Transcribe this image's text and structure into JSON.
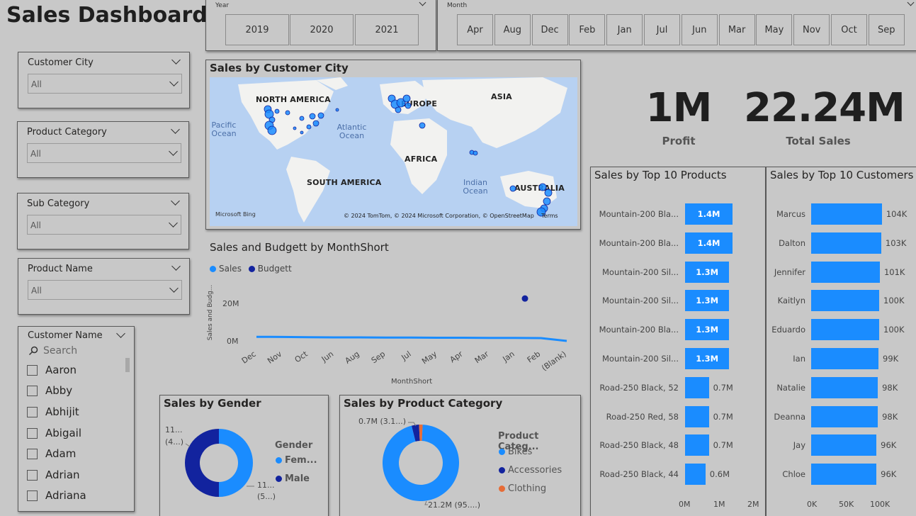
{
  "title": "Sales Dashboard",
  "year_slicer": {
    "label": "Year",
    "options": [
      "2019",
      "2020",
      "2021"
    ]
  },
  "month_slicer": {
    "label": "Month",
    "options": [
      "Apr",
      "Aug",
      "Dec",
      "Feb",
      "Jan",
      "Jul",
      "Jun",
      "Mar",
      "May",
      "Nov",
      "Oct",
      "Sep"
    ]
  },
  "filters": [
    {
      "label": "Customer City",
      "value": "All"
    },
    {
      "label": "Product Category",
      "value": "All"
    },
    {
      "label": "Sub Category",
      "value": "All"
    },
    {
      "label": "Product Name",
      "value": "All"
    }
  ],
  "customer_name": {
    "label": "Customer Name",
    "search_placeholder": "Search",
    "items": [
      "Aaron",
      "Abby",
      "Abhijit",
      "Abigail",
      "Adam",
      "Adrian",
      "Adriana"
    ]
  },
  "map": {
    "title": "Sales by Customer City",
    "continents": [
      "NORTH AMERICA",
      "EUROPE",
      "ASIA",
      "AFRICA",
      "SOUTH AMERICA",
      "AUSTRALIA"
    ],
    "oceans": [
      "Pacific Ocean",
      "Atlantic Ocean",
      "Indian Ocean"
    ],
    "bing": "Microsoft Bing",
    "copyright": "© 2024 TomTom, © 2024 Microsoft Corporation, © OpenStreetMap",
    "terms": "Terms"
  },
  "kpis": [
    {
      "value": "1M",
      "label": "Profit"
    },
    {
      "value": "22.24M",
      "label": "Total Sales"
    }
  ],
  "line_chart": {
    "title": "Sales and Budgett by MonthShort",
    "legend": [
      "Sales",
      "Budgett"
    ],
    "ylabel": "Sales and Budg...",
    "xlabel": "MonthShort",
    "yticks": [
      "20M",
      "0M"
    ],
    "colors": {
      "sales": "#1a8cff",
      "budget": "#12239e"
    }
  },
  "gender_chart": {
    "title": "Sales by Gender",
    "legend_title": "Gender",
    "legend": [
      "Fem...",
      "Male"
    ],
    "label_top": "11...",
    "label_top2": "(4...)",
    "label_bottom": "11...",
    "label_bottom2": "(5...)"
  },
  "category_chart": {
    "title": "Sales by Product Category",
    "legend_title": "Product Categ...",
    "legend": [
      "Bikes",
      "Accessories",
      "Clothing"
    ],
    "label_top": "0.7M (3.1...)",
    "label_bottom": "21.2M (95....)",
    "colors": {
      "bikes": "#1a8cff",
      "accessories": "#12239e",
      "clothing": "#e66c37"
    }
  },
  "top_products": {
    "title": "Sales by Top 10 Products",
    "xticks": [
      "0M",
      "1M",
      "2M"
    ]
  },
  "top_customers": {
    "title": "Sales by Top 10 Customers",
    "xticks": [
      "0K",
      "50K",
      "100K"
    ]
  },
  "chart_data": [
    {
      "type": "line",
      "title": "Sales and Budgett by MonthShort",
      "xlabel": "MonthShort",
      "ylabel": "Sales and Budg...",
      "categories": [
        "Dec",
        "Nov",
        "Oct",
        "Jun",
        "Aug",
        "Sep",
        "Jul",
        "May",
        "Apr",
        "Mar",
        "Jan",
        "Feb",
        "(Blank)"
      ],
      "series": [
        {
          "name": "Sales",
          "values": [
            2.2,
            2.1,
            2.0,
            1.9,
            1.9,
            1.8,
            1.8,
            1.7,
            1.7,
            1.6,
            1.6,
            1.5,
            0.0
          ]
        },
        {
          "name": "Budgett",
          "values": [
            null,
            null,
            null,
            null,
            null,
            null,
            null,
            null,
            null,
            null,
            22.2,
            null,
            null
          ]
        }
      ],
      "ylim": [
        0,
        30
      ]
    },
    {
      "type": "pie",
      "title": "Sales by Gender",
      "categories": [
        "Fem...",
        "Male"
      ],
      "values": [
        11.1,
        11.1
      ]
    },
    {
      "type": "pie",
      "title": "Sales by Product Category",
      "categories": [
        "Bikes",
        "Accessories",
        "Clothing"
      ],
      "values": [
        21.2,
        0.7,
        0.34
      ]
    },
    {
      "type": "bar",
      "title": "Sales by Top 10 Products",
      "categories": [
        "Mountain-200 Bla...",
        "Mountain-200 Bla...",
        "Mountain-200 Sil...",
        "Mountain-200 Sil...",
        "Mountain-200 Bla...",
        "Mountain-200 Sil...",
        "Road-250 Black, 52",
        "Road-250 Red, 58",
        "Road-250 Black, 48",
        "Road-250 Black, 44"
      ],
      "values": [
        1.4,
        1.4,
        1.3,
        1.3,
        1.3,
        1.3,
        0.7,
        0.7,
        0.7,
        0.6
      ],
      "value_labels": [
        "1.4M",
        "1.4M",
        "1.3M",
        "1.3M",
        "1.3M",
        "1.3M",
        "0.7M",
        "0.7M",
        "0.7M",
        "0.6M"
      ],
      "xlim": [
        0,
        2
      ]
    },
    {
      "type": "bar",
      "title": "Sales by Top 10 Customers",
      "categories": [
        "Marcus",
        "Dalton",
        "Jennifer",
        "Kaitlyn",
        "Eduardo",
        "Ian",
        "Natalie",
        "Deanna",
        "Jay",
        "Chloe"
      ],
      "values": [
        104,
        103,
        101,
        100,
        100,
        99,
        98,
        98,
        96,
        96
      ],
      "value_labels": [
        "104K",
        "103K",
        "101K",
        "100K",
        "100K",
        "99K",
        "98K",
        "98K",
        "96K",
        "96K"
      ],
      "xlim": [
        0,
        100
      ]
    }
  ]
}
